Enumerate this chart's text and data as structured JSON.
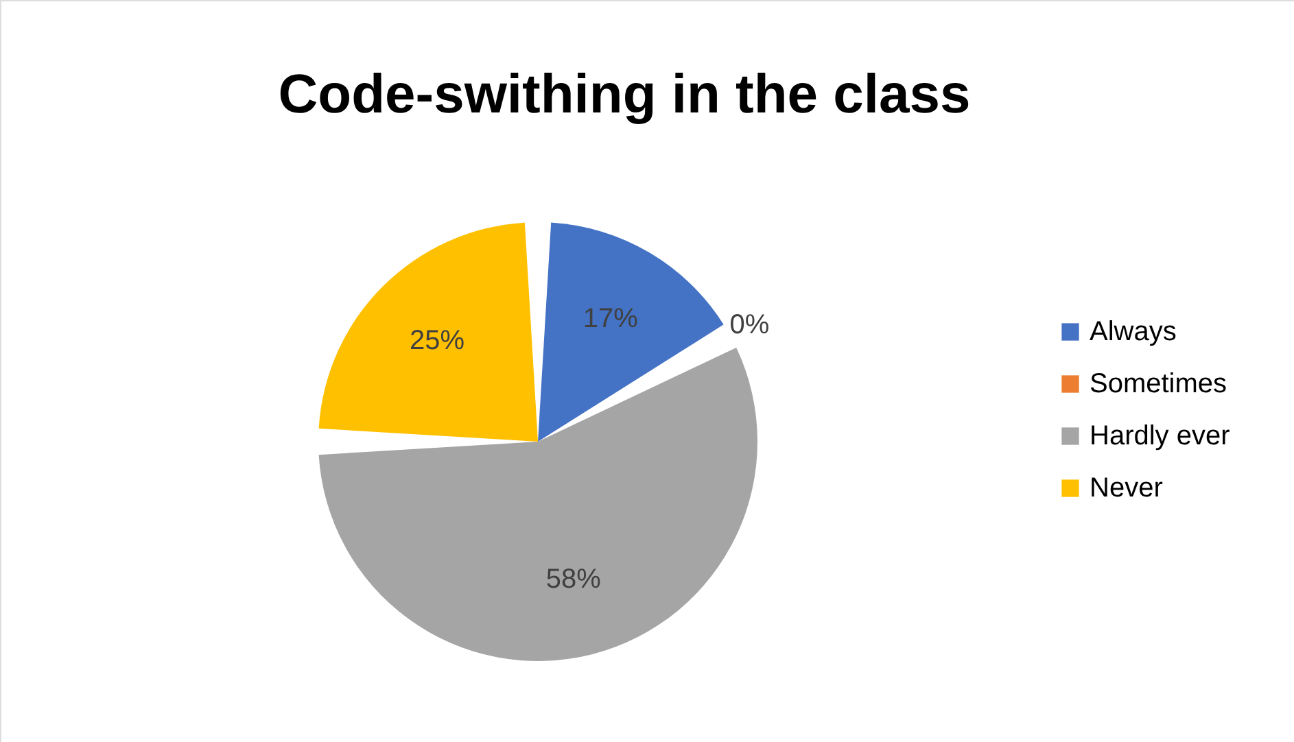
{
  "chart_data": {
    "type": "pie",
    "title": "Code-swithing in the class",
    "categories": [
      "Always",
      "Sometimes",
      "Hardly ever",
      "Never"
    ],
    "values": [
      17,
      0,
      58,
      25
    ],
    "colors": [
      "#4472c4",
      "#ed7d31",
      "#a5a5a5",
      "#ffc000"
    ],
    "value_labels": [
      "17%",
      "0%",
      "58%",
      "25%"
    ],
    "legend": "right"
  }
}
